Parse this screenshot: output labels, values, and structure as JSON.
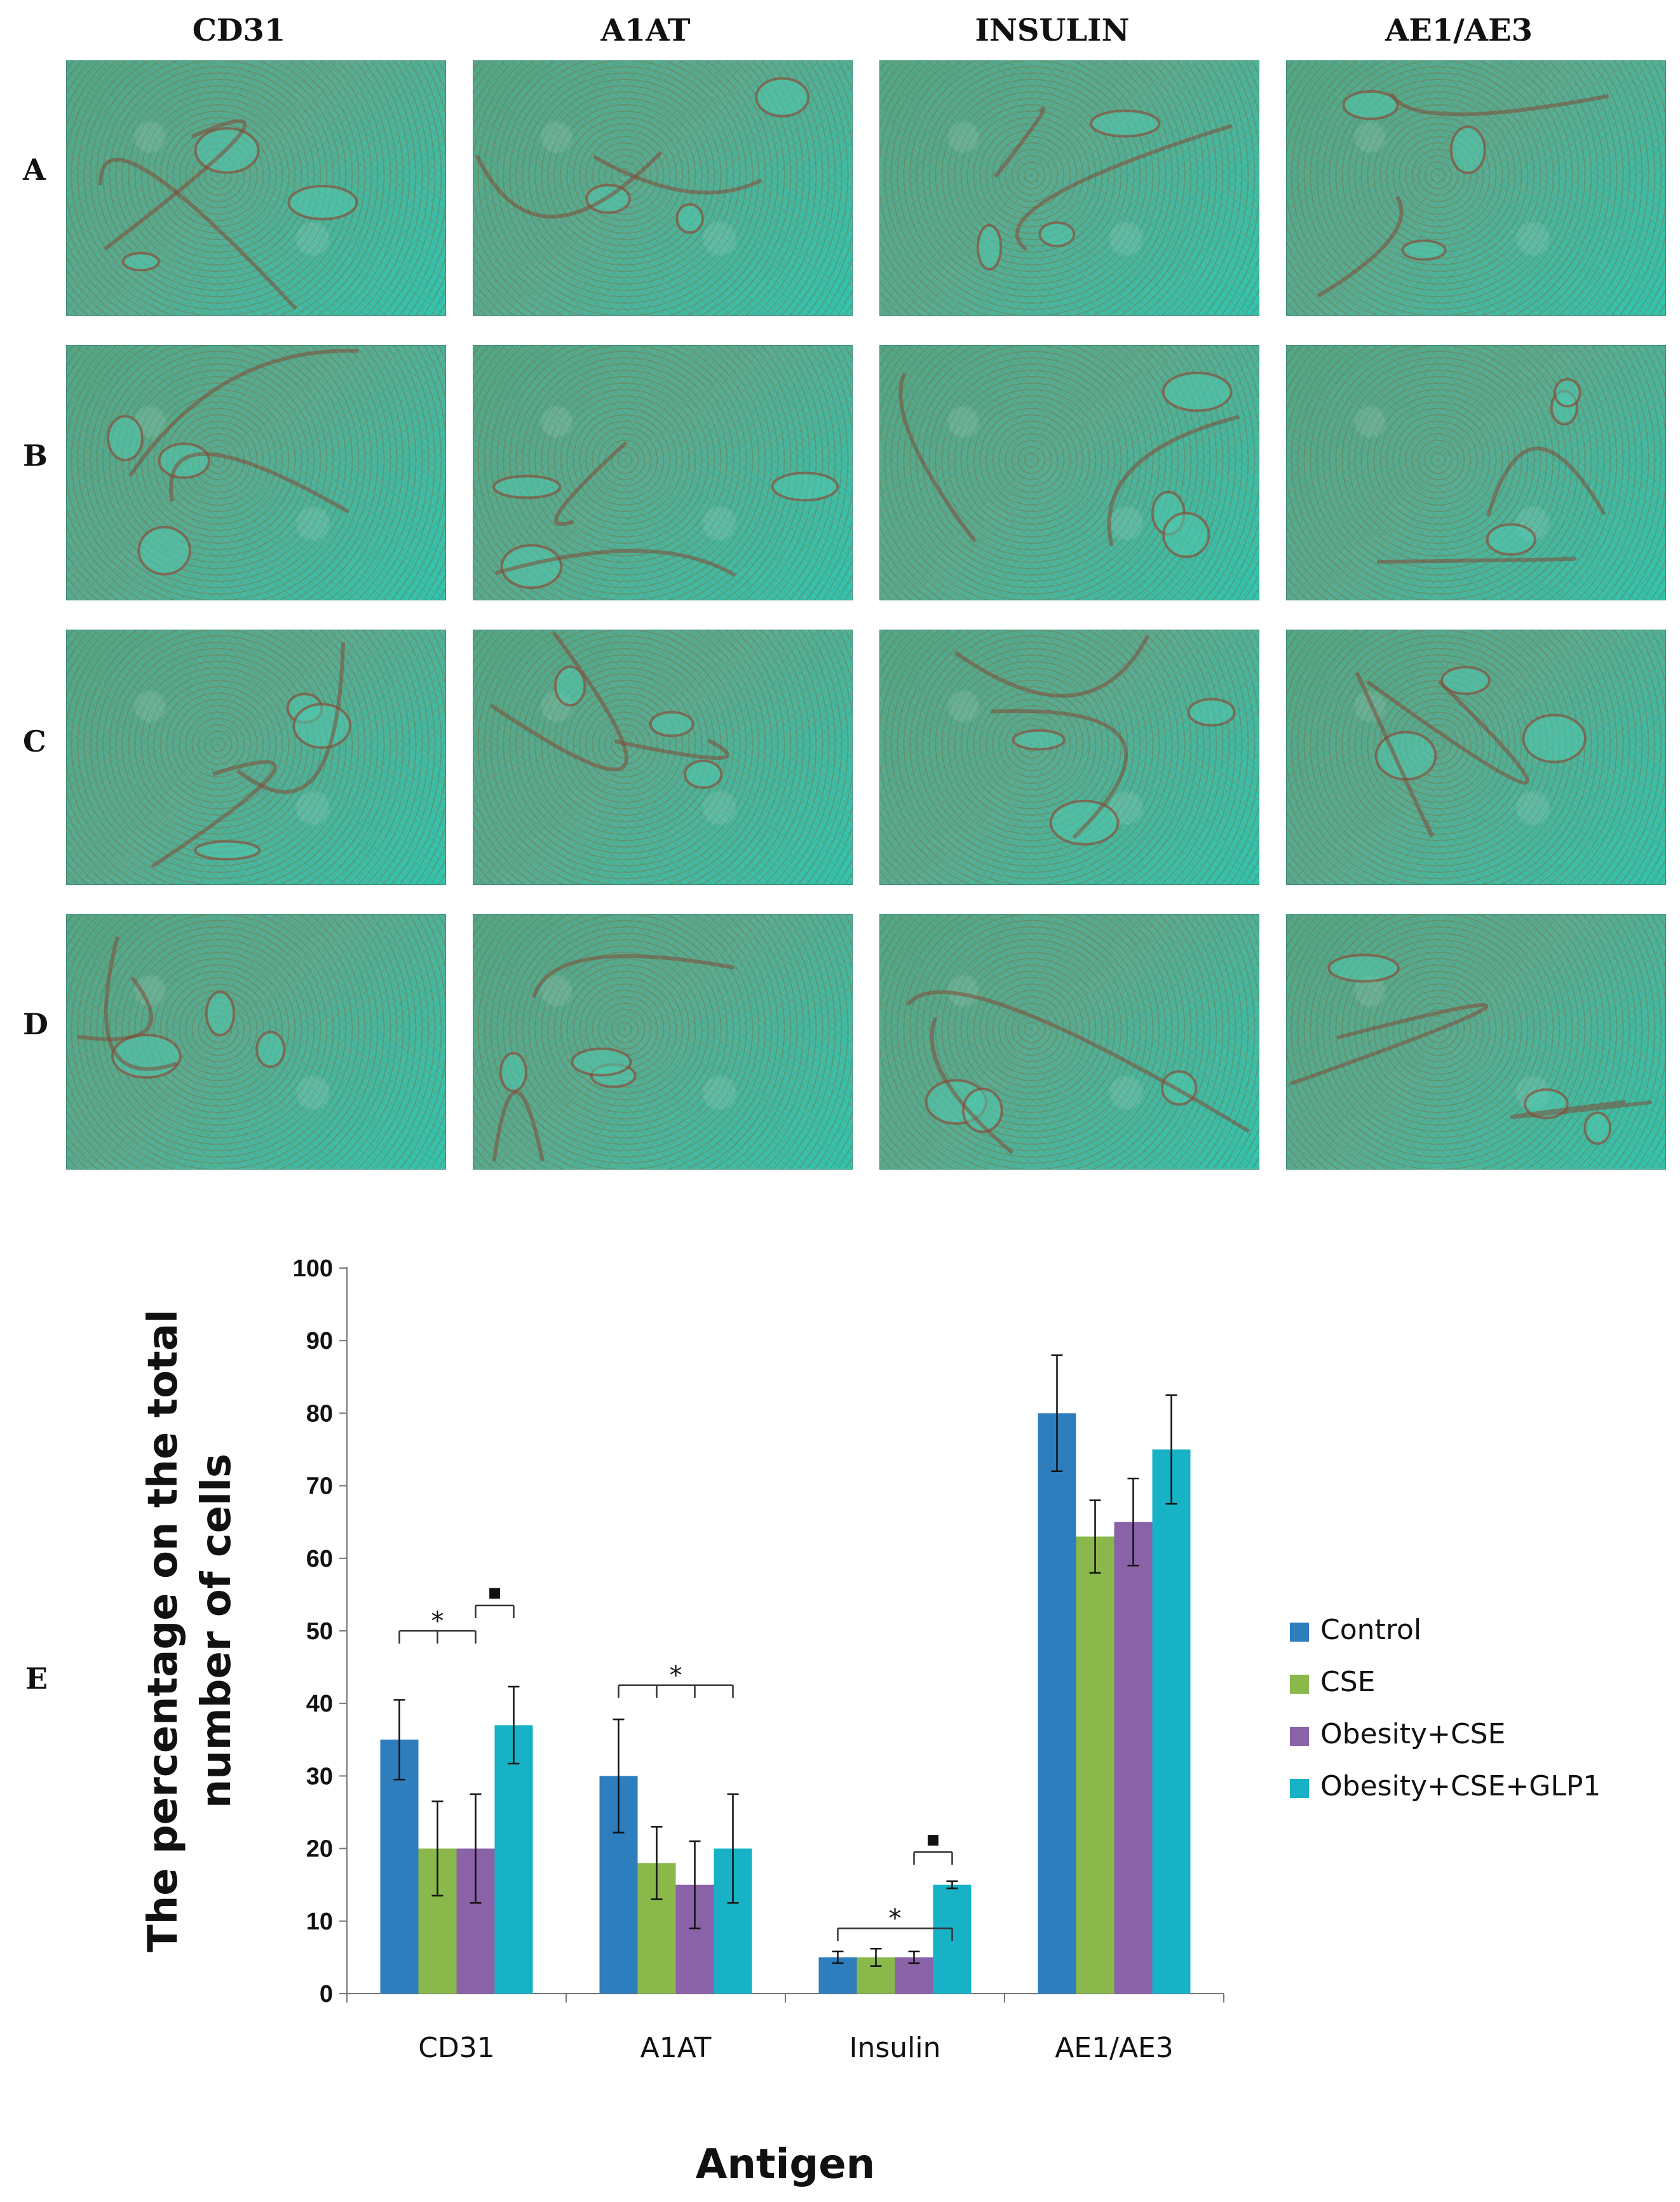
{
  "figure": {
    "column_headers": [
      "CD31",
      "A1AT",
      "INSULIN",
      "AE1/AE3"
    ],
    "row_labels": [
      "A",
      "B",
      "C",
      "D"
    ],
    "chart_panel_label": "E"
  },
  "chart_data": {
    "type": "bar",
    "categories": [
      "CD31",
      "A1AT",
      "Insulin",
      "AE1/AE3"
    ],
    "series": [
      {
        "name": "Control",
        "color": "#2e7dbd",
        "values": [
          35,
          30,
          5,
          80
        ],
        "errors": [
          5.5,
          7.8,
          0.8,
          8
        ]
      },
      {
        "name": "CSE",
        "color": "#8ab84a",
        "values": [
          20,
          18,
          5,
          63
        ],
        "errors": [
          6.5,
          5,
          1.2,
          5
        ]
      },
      {
        "name": "Obesity+CSE",
        "color": "#8a62a8",
        "values": [
          20,
          15,
          5,
          65
        ],
        "errors": [
          7.5,
          6,
          0.8,
          6
        ]
      },
      {
        "name": "Obesity+CSE+GLP1",
        "color": "#17b2c6",
        "values": [
          37,
          20,
          15,
          75
        ],
        "errors": [
          5.3,
          7.5,
          0.5,
          7.5
        ]
      }
    ],
    "ylabel": "The percentage on the total number of cells",
    "xlabel": "Antigen",
    "ylim": [
      0,
      100
    ],
    "yticks": [
      0,
      10,
      20,
      30,
      40,
      50,
      60,
      70,
      80,
      90,
      100
    ],
    "significance": [
      {
        "category": "CD31",
        "symbol": "*",
        "from_series": 0,
        "to_series": [
          1,
          2
        ],
        "level": 50
      },
      {
        "category": "CD31",
        "symbol": "▪",
        "from_series": 2,
        "to_series": [
          3
        ],
        "level": 53.5
      },
      {
        "category": "A1AT",
        "symbol": "*",
        "from_series": 0,
        "to_series": [
          1,
          2,
          3
        ],
        "level": 42.5
      },
      {
        "category": "Insulin",
        "symbol": "*",
        "from_series": 0,
        "to_series": [
          3
        ],
        "level": 9
      },
      {
        "category": "Insulin",
        "symbol": "▪",
        "from_series": 2,
        "to_series": [
          3
        ],
        "level": 19.5
      }
    ],
    "legend_position": "right"
  }
}
